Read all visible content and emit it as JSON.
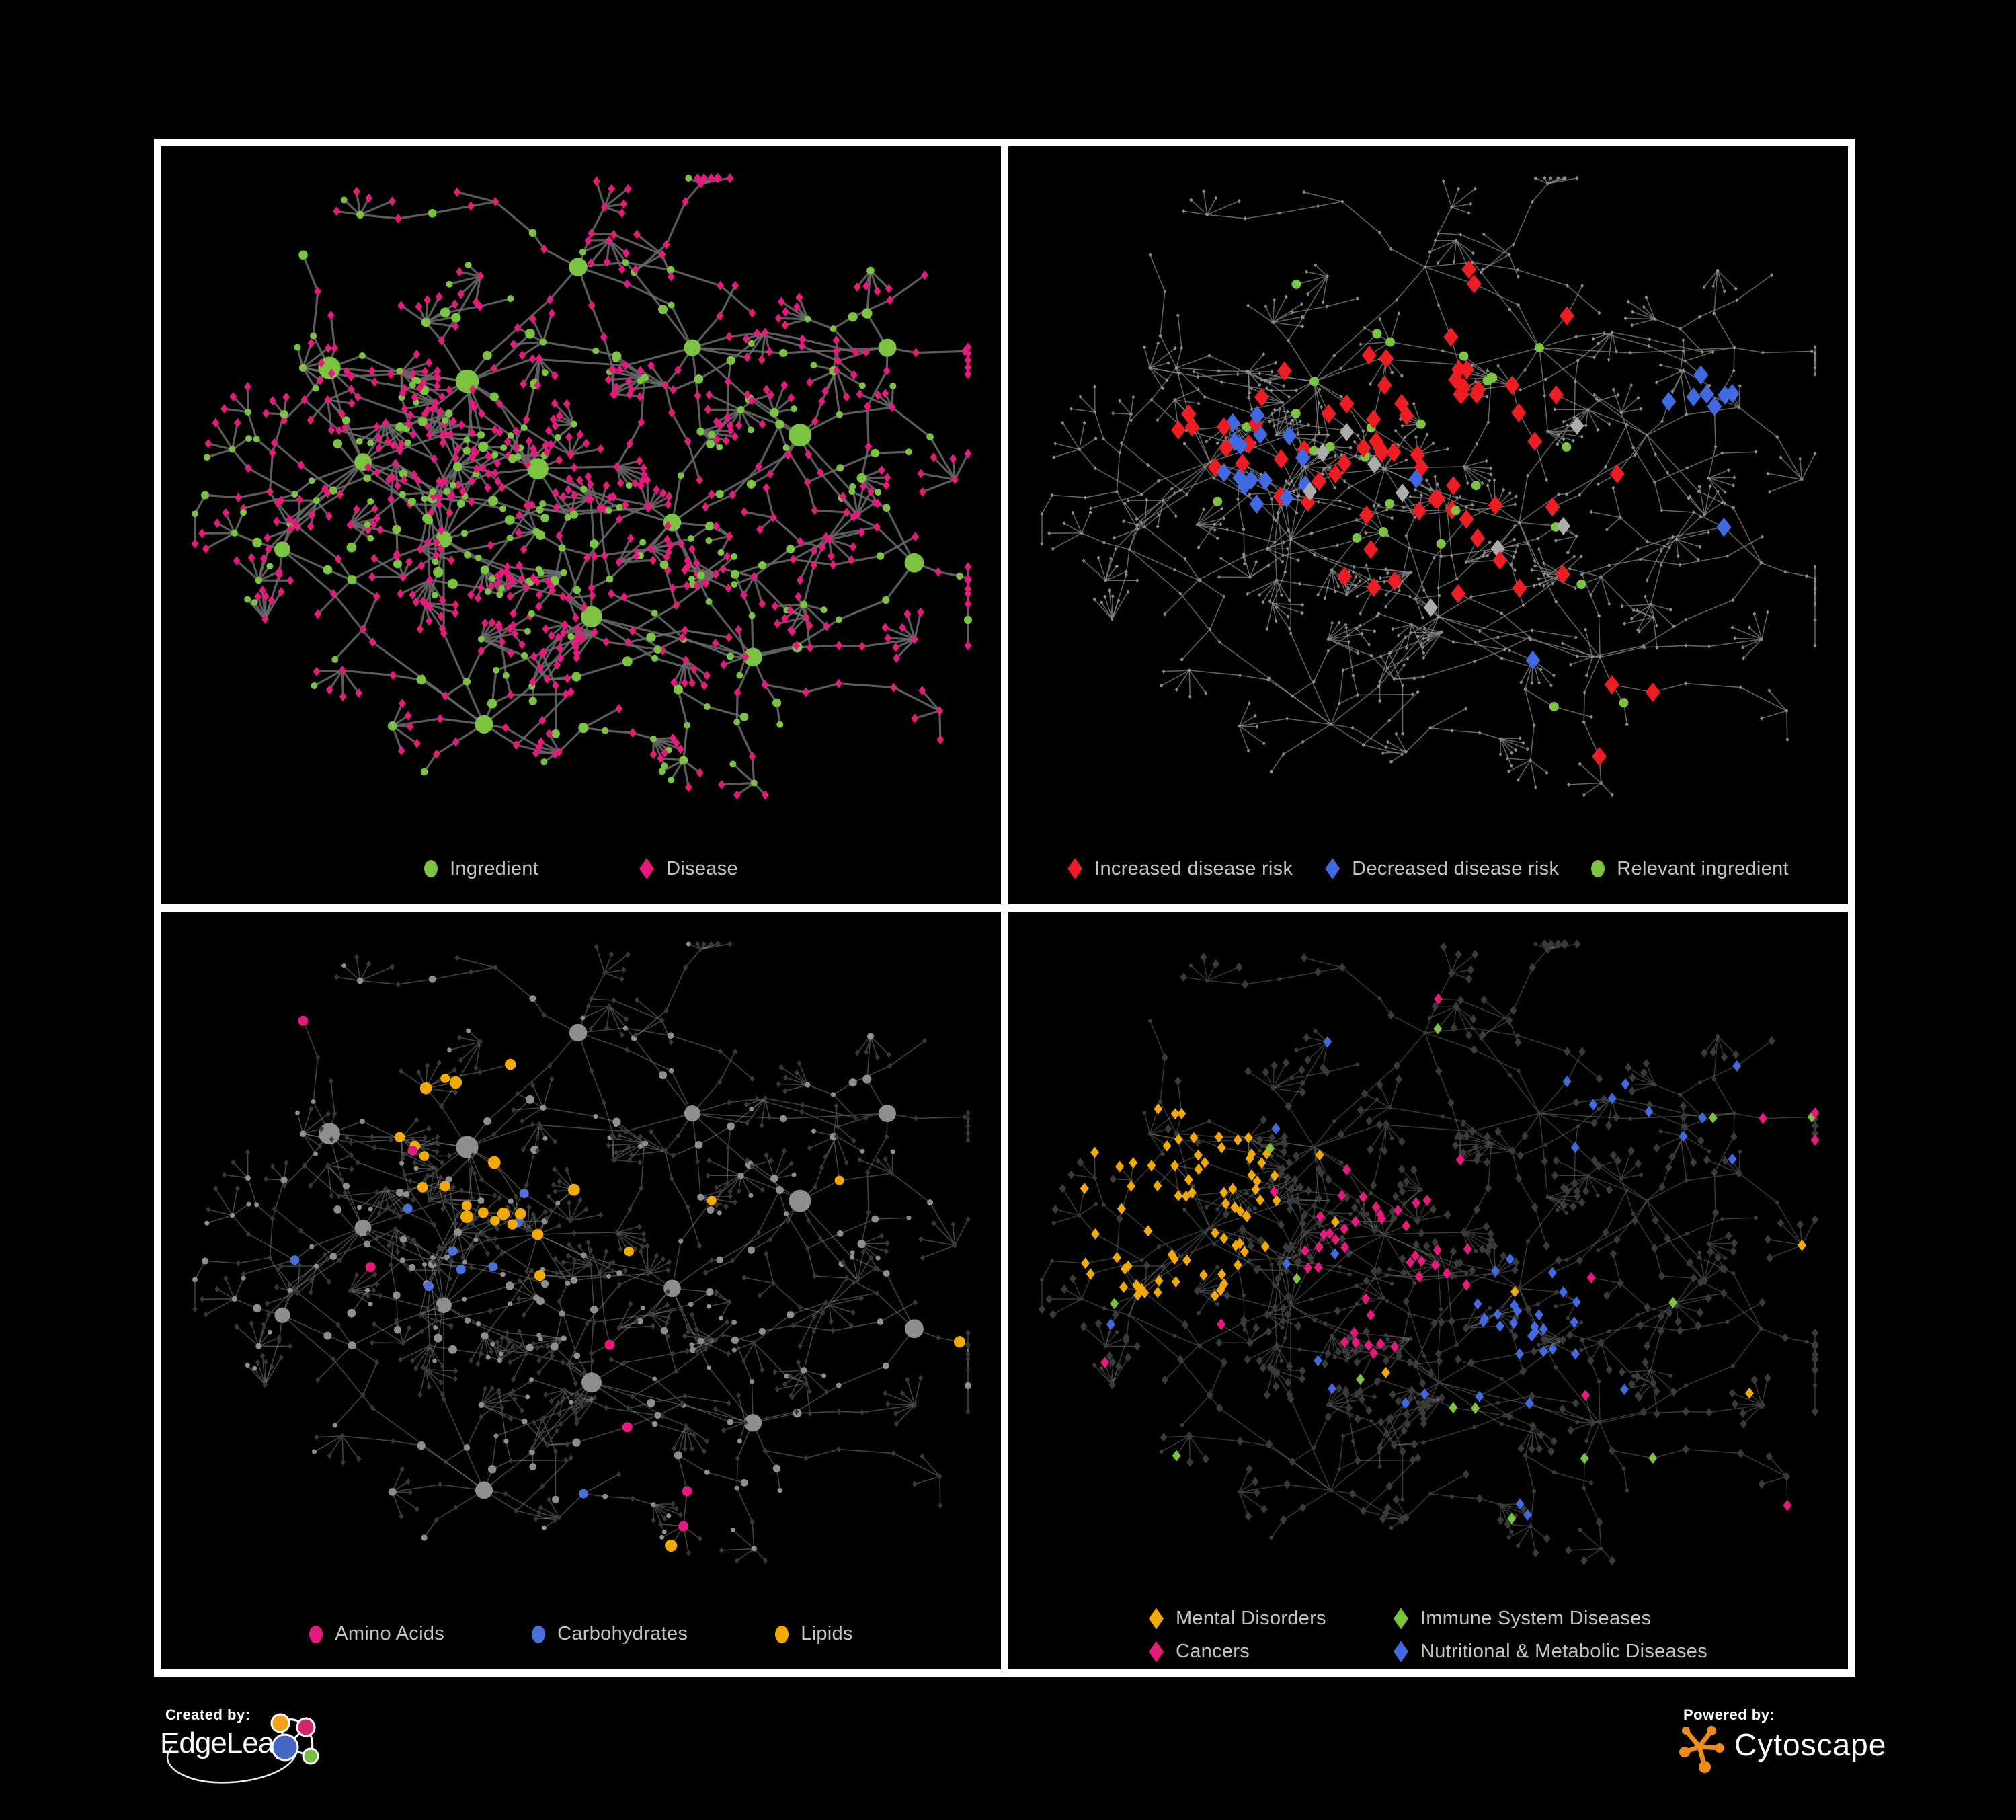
{
  "canvas": {
    "background": "#000000",
    "frame_color": "#ffffff"
  },
  "panels": [
    {
      "id": "ingredient-disease",
      "legend": [
        {
          "shape": "circle",
          "color": "#7CC342",
          "label": "Ingredient"
        },
        {
          "shape": "diamond",
          "color": "#E8197D",
          "label": "Disease"
        }
      ],
      "style": {
        "edge_color": "#6B6B6B",
        "edge_width": 3.2,
        "edge_opacity": 0.85,
        "ingredient_color": "#7CC342",
        "disease_color": "#E8197D"
      }
    },
    {
      "id": "disease-risk",
      "legend": [
        {
          "shape": "diamond",
          "color": "#EE1D23",
          "label": "Increased disease risk"
        },
        {
          "shape": "diamond",
          "color": "#4169E1",
          "label": "Decreased disease risk"
        },
        {
          "shape": "circle",
          "color": "#7CC342",
          "label": "Relevant ingredient"
        }
      ],
      "style": {
        "edge_color": "#8E8E8E",
        "edge_width": 1.5,
        "edge_opacity": 0.7,
        "base_color": "#8C8C8C",
        "increased_color": "#EE1D23",
        "decreased_color": "#4169E1",
        "neutral_color": "#ACACAC",
        "ingredient_color": "#7CC342"
      }
    },
    {
      "id": "compound-classes",
      "legend": [
        {
          "shape": "circle",
          "color": "#E8197D",
          "label": "Amino Acids"
        },
        {
          "shape": "circle",
          "color": "#4A6FD8",
          "label": "Carbohydrates"
        },
        {
          "shape": "circle",
          "color": "#F2A900",
          "label": "Lipids"
        }
      ],
      "style": {
        "edge_color": "#9A9A9A",
        "edge_width": 1.5,
        "edge_opacity": 0.45,
        "node_color": "#8E8E8E",
        "dim_color": "#383838",
        "amino_color": "#E8197D",
        "carb_color": "#4A6FD8",
        "lipid_color": "#F2A900"
      }
    },
    {
      "id": "disease-categories",
      "legend": [
        {
          "shape": "diamond",
          "color": "#F2A900",
          "label": "Mental Disorders"
        },
        {
          "shape": "diamond",
          "color": "#7CC342",
          "label": "Immune System Diseases"
        },
        {
          "shape": "diamond",
          "color": "#E8197D",
          "label": "Cancers"
        },
        {
          "shape": "diamond",
          "color": "#4169E1",
          "label": "Nutritional & Metabolic Diseases"
        }
      ],
      "style": {
        "edge_color": "#9A9A9A",
        "edge_width": 1.4,
        "edge_opacity": 0.38,
        "dim_color": "#3A3A3A",
        "mental_color": "#F2A900",
        "immune_color": "#7CC342",
        "cancer_color": "#E8197D",
        "metabolic_color": "#4169E1"
      }
    }
  ],
  "footer": {
    "created_by": {
      "label": "Created by:",
      "brand": "EdgeLeap",
      "logo_colors": {
        "orange": "#F0A11E",
        "magenta": "#D1256E",
        "blue": "#4566C6",
        "green": "#76BD43"
      }
    },
    "powered_by": {
      "label": "Powered by:",
      "brand": "Cytoscape",
      "logo_color": "#EF8A1D"
    }
  }
}
